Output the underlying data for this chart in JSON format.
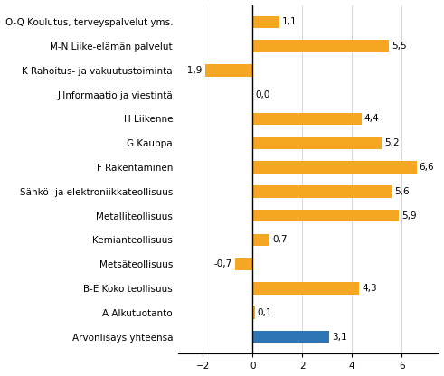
{
  "categories": [
    "Arvonlisäys yhteensä",
    "A Alkutuotanto",
    "B-E Koko teollisuus",
    "Metsäteollisuus",
    "Kemianteollisuus",
    "Metalliteollisuus",
    "Sähkö- ja elektroniikkateollisuus",
    "F Rakentaminen",
    "G Kauppa",
    "H Liikenne",
    "J Informaatio ja viestintä",
    "K Rahoitus- ja vakuutustoiminta",
    "M-N Liike-elämän palvelut",
    "O-Q Koulutus, terveyspalvelut yms."
  ],
  "values": [
    3.1,
    0.1,
    4.3,
    -0.7,
    0.7,
    5.9,
    5.6,
    6.6,
    5.2,
    4.4,
    0.0,
    -1.9,
    5.5,
    1.1
  ],
  "bar_colors": [
    "#2e75b6",
    "#f5a623",
    "#f5a623",
    "#f5a623",
    "#f5a623",
    "#f5a623",
    "#f5a623",
    "#f5a623",
    "#f5a623",
    "#f5a623",
    "#f5a623",
    "#f5a623",
    "#f5a623",
    "#f5a623"
  ],
  "xlim": [
    -3,
    7.5
  ],
  "xticks": [
    -2,
    0,
    2,
    4,
    6
  ],
  "background_color": "#ffffff",
  "label_fontsize": 7.5,
  "value_fontsize": 7.5,
  "bar_height": 0.5
}
